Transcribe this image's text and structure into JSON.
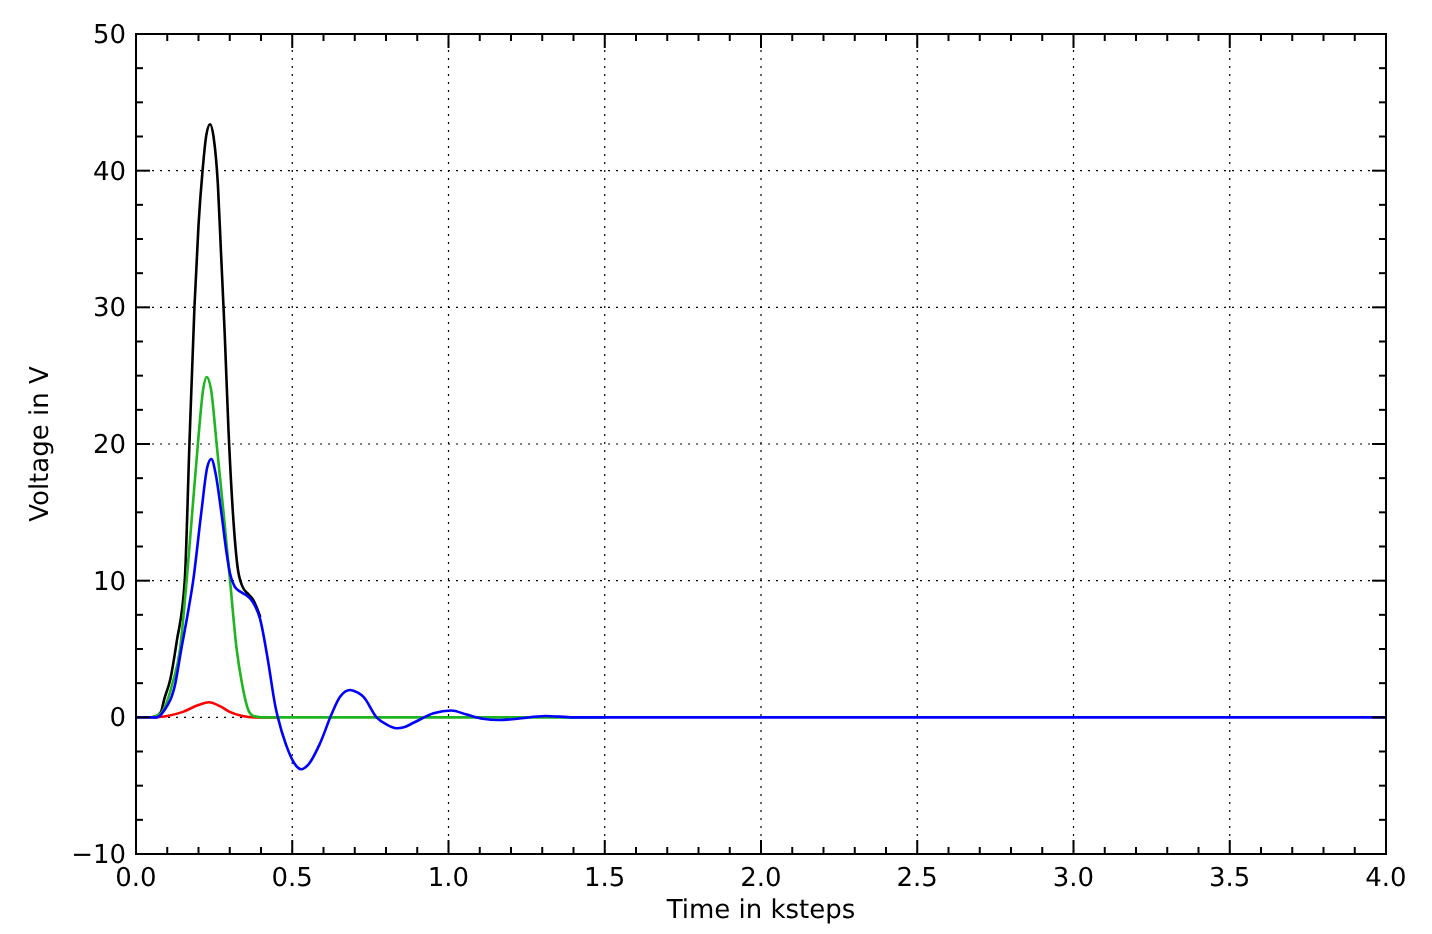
{
  "chart_data": {
    "type": "line",
    "xlabel": "Time in ksteps",
    "ylabel": "Voltage in V",
    "xlim": [
      0,
      4
    ],
    "ylim": [
      -10,
      50
    ],
    "xticks": [
      {
        "value": 0,
        "label": "0.0"
      },
      {
        "value": 0.1,
        "label": null
      },
      {
        "value": 0.2,
        "label": null
      },
      {
        "value": 0.3,
        "label": null
      },
      {
        "value": 0.4,
        "label": null
      },
      {
        "value": 0.5,
        "label": "0.5"
      },
      {
        "value": 0.6,
        "label": null
      },
      {
        "value": 0.7,
        "label": null
      },
      {
        "value": 0.8,
        "label": null
      },
      {
        "value": 0.9,
        "label": null
      },
      {
        "value": 1,
        "label": "1.0"
      },
      {
        "value": 1.1,
        "label": null
      },
      {
        "value": 1.2,
        "label": null
      },
      {
        "value": 1.3,
        "label": null
      },
      {
        "value": 1.4,
        "label": null
      },
      {
        "value": 1.5,
        "label": "1.5"
      },
      {
        "value": 1.6,
        "label": null
      },
      {
        "value": 1.7,
        "label": null
      },
      {
        "value": 1.8,
        "label": null
      },
      {
        "value": 1.9,
        "label": null
      },
      {
        "value": 2,
        "label": "2.0"
      },
      {
        "value": 2.1,
        "label": null
      },
      {
        "value": 2.2,
        "label": null
      },
      {
        "value": 2.3,
        "label": null
      },
      {
        "value": 2.4,
        "label": null
      },
      {
        "value": 2.5,
        "label": "2.5"
      },
      {
        "value": 2.6,
        "label": null
      },
      {
        "value": 2.7,
        "label": null
      },
      {
        "value": 2.8,
        "label": null
      },
      {
        "value": 2.9,
        "label": null
      },
      {
        "value": 3,
        "label": "3.0"
      },
      {
        "value": 3.1,
        "label": null
      },
      {
        "value": 3.2,
        "label": null
      },
      {
        "value": 3.3,
        "label": null
      },
      {
        "value": 3.4,
        "label": null
      },
      {
        "value": 3.5,
        "label": "3.5"
      },
      {
        "value": 3.6,
        "label": null
      },
      {
        "value": 3.7,
        "label": null
      },
      {
        "value": 3.8,
        "label": null
      },
      {
        "value": 3.9,
        "label": null
      },
      {
        "value": 4,
        "label": "4.0"
      }
    ],
    "yticks": [
      {
        "value": -10,
        "label": "−10"
      },
      {
        "value": -7.5,
        "label": null
      },
      {
        "value": -5,
        "label": null
      },
      {
        "value": -2.5,
        "label": null
      },
      0,
      {
        "value": 2.5,
        "label": null
      },
      {
        "value": 5,
        "label": null
      },
      {
        "value": 7.5,
        "label": null
      },
      10,
      {
        "value": 12.5,
        "label": null
      },
      {
        "value": 15,
        "label": null
      },
      {
        "value": 17.5,
        "label": null
      },
      20,
      {
        "value": 22.5,
        "label": null
      },
      {
        "value": 25,
        "label": null
      },
      {
        "value": 27.5,
        "label": null
      },
      30,
      {
        "value": 32.5,
        "label": null
      },
      {
        "value": 35,
        "label": null
      },
      {
        "value": 37.5,
        "label": null
      },
      40,
      {
        "value": 42.5,
        "label": null
      },
      {
        "value": 45,
        "label": null
      },
      {
        "value": 47.5,
        "label": null
      },
      50
    ],
    "grid": true,
    "series": [
      {
        "color": "#000000",
        "x": [
          0.06,
          0.08,
          0.09,
          0.11,
          0.13,
          0.156,
          0.171,
          0.187,
          0.2,
          0.213,
          0.225,
          0.237,
          0.248,
          0.262,
          0.272,
          0.284,
          0.296,
          0.31,
          0.325,
          0.34,
          0.36,
          0.375,
          0.397
        ],
        "values": [
          0,
          0.4,
          1.3,
          2.8,
          5.5,
          10,
          20,
          30,
          36,
          40,
          42.6,
          43.4,
          42.5,
          39,
          34,
          28,
          21,
          15,
          11,
          9.6,
          9,
          8.6,
          7.4
        ]
      },
      {
        "color": "#ff0000",
        "x": [
          0.05,
          0.1,
          0.15,
          0.2,
          0.233,
          0.27,
          0.3,
          0.34,
          0.38,
          0.45
        ],
        "values": [
          0,
          0.1,
          0.4,
          0.9,
          1.1,
          0.8,
          0.4,
          0.1,
          0,
          0
        ]
      },
      {
        "color": "#1fb51f",
        "x": [
          0.05,
          0.08,
          0.1,
          0.117,
          0.141,
          0.162,
          0.18,
          0.198,
          0.215,
          0.226,
          0.24,
          0.258,
          0.28,
          0.301,
          0.322,
          0.339,
          0.36,
          0.375,
          0.4,
          1.5
        ],
        "values": [
          0,
          0.3,
          1.2,
          2.5,
          5,
          10,
          15,
          20,
          24,
          24.9,
          24,
          20,
          15,
          10,
          5,
          2.5,
          0.5,
          0.1,
          0,
          0
        ]
      },
      {
        "color": "#0000ff",
        "x": [
          0,
          0.066,
          0.09,
          0.126,
          0.145,
          0.165,
          0.183,
          0.209,
          0.228,
          0.241,
          0.255,
          0.273,
          0.29,
          0.301,
          0.315,
          0.333,
          0.355,
          0.375,
          0.397,
          0.422,
          0.446,
          0.454,
          0.48,
          0.505,
          0.529,
          0.55,
          0.589,
          0.627,
          0.653,
          0.685,
          0.71,
          0.728,
          0.77,
          0.8,
          0.834,
          0.86,
          0.888,
          0.952,
          1.009,
          1.058,
          1.11,
          1.16,
          1.22,
          1.31,
          1.4,
          1.5,
          1.6,
          4
        ],
        "values": [
          0,
          0,
          0.5,
          2.5,
          5,
          7.5,
          10,
          15,
          18.3,
          18.9,
          17.8,
          15,
          12,
          10.5,
          9.6,
          9.2,
          8.9,
          8.4,
          7.2,
          4.2,
          0.8,
          0,
          -2,
          -3.3,
          -3.8,
          -3.5,
          -1.9,
          0.3,
          1.5,
          2,
          1.8,
          1.5,
          0,
          -0.5,
          -0.8,
          -0.7,
          -0.4,
          0.3,
          0.5,
          0.2,
          -0.1,
          -0.2,
          -0.1,
          0.1,
          0,
          0,
          0,
          0
        ]
      }
    ]
  }
}
